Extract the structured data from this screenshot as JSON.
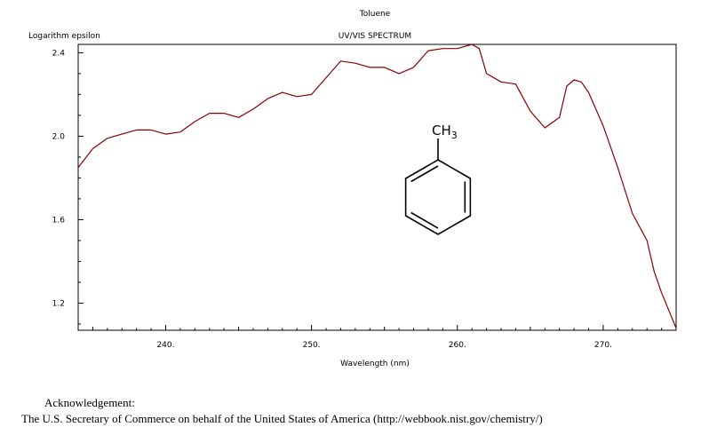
{
  "chart_data": {
    "type": "line",
    "title": "Toluene",
    "subtitle": "UV/VIS SPECTRUM",
    "ylabel": "Logarithm epsilon",
    "xlabel": "Wavelength (nm)",
    "xlim": [
      234,
      275
    ],
    "ylim": [
      1.07,
      2.44
    ],
    "x_ticks": [
      240,
      250,
      260,
      270
    ],
    "x_tick_labels": [
      "240.",
      "250.",
      "260.",
      "270."
    ],
    "y_ticks": [
      1.2,
      1.6,
      2.0,
      2.4
    ],
    "y_tick_labels": [
      "1.2",
      "1.6",
      "2.0",
      "2.4"
    ],
    "grid": false,
    "line_color": "#8b0000",
    "series": [
      {
        "x": [
          234,
          235,
          236,
          237,
          238,
          239,
          240,
          241,
          242,
          243,
          244,
          245,
          246,
          247,
          248,
          249,
          250,
          251,
          252,
          253,
          254,
          255,
          256,
          257,
          258,
          259,
          260,
          261,
          261.5,
          262,
          263,
          264,
          265,
          266,
          267,
          267.5,
          268,
          268.5,
          269,
          270,
          271,
          271.5,
          272,
          273,
          273.5,
          274,
          275
        ],
        "y": [
          1.85,
          1.94,
          1.99,
          2.01,
          2.03,
          2.03,
          2.01,
          2.02,
          2.07,
          2.11,
          2.11,
          2.09,
          2.13,
          2.18,
          2.21,
          2.19,
          2.2,
          2.28,
          2.36,
          2.35,
          2.33,
          2.33,
          2.3,
          2.33,
          2.41,
          2.42,
          2.42,
          2.44,
          2.42,
          2.3,
          2.26,
          2.25,
          2.12,
          2.04,
          2.09,
          2.24,
          2.27,
          2.26,
          2.21,
          2.05,
          1.85,
          1.74,
          1.63,
          1.5,
          1.35,
          1.25,
          1.08
        ]
      }
    ],
    "structure_label": "CH3"
  },
  "acknowledgement": {
    "heading": "Acknowledgement:",
    "text": "The U.S. Secretary of Commerce on behalf of the United States of America (http://webbook.nist.gov/chemistry/)"
  }
}
